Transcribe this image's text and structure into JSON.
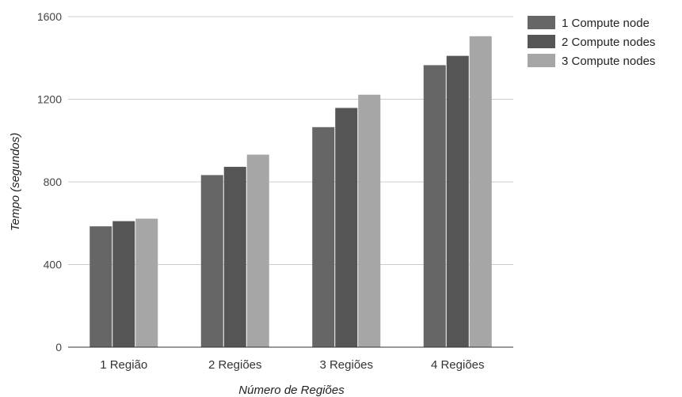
{
  "chart_data": {
    "type": "bar",
    "title": "",
    "xlabel": "Número de Regiões",
    "ylabel": "Tempo (segundos)",
    "ylim": [
      0,
      1600
    ],
    "yticks": [
      0,
      400,
      800,
      1200,
      1600
    ],
    "grid": true,
    "legend_position": "right",
    "categories": [
      "1 Região",
      "2 Regiões",
      "3 Regiões",
      "4 Regiões"
    ],
    "series": [
      {
        "name": "1 Compute node",
        "color": "#666666",
        "values": [
          585,
          833,
          1065,
          1365
        ]
      },
      {
        "name": "2 Compute nodes",
        "color": "#555555",
        "values": [
          610,
          873,
          1158,
          1410
        ]
      },
      {
        "name": "3 Compute nodes",
        "color": "#a6a6a6",
        "values": [
          622,
          932,
          1222,
          1505
        ]
      }
    ]
  }
}
